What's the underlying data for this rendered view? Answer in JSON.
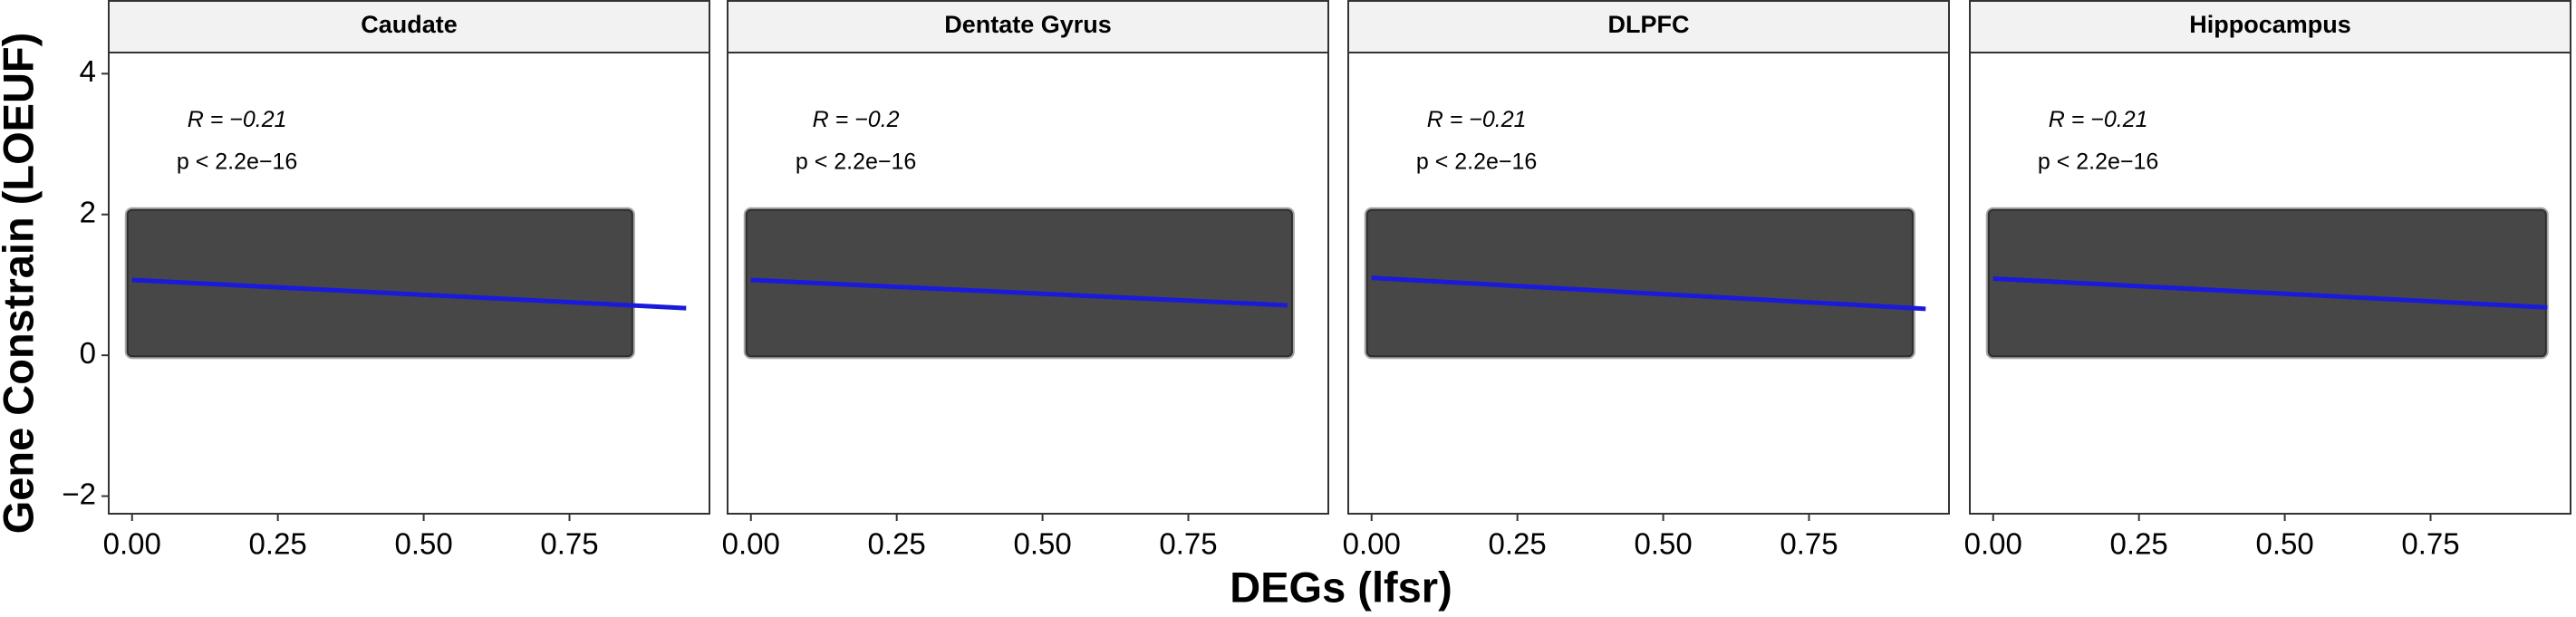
{
  "chart_data": [
    {
      "type": "scatter",
      "title": "Caudate",
      "ylabel": "Gene Constrain (LOEUF)",
      "xlabel": "DEGs (lfsr)",
      "annotations": [
        "R = −0.21",
        "p < 2.2e−16"
      ],
      "xlim": [
        -0.04,
        0.99
      ],
      "ylim": [
        -2.25,
        4.3
      ],
      "xticks": [
        {
          "value": 0,
          "label": "0.00"
        },
        {
          "value": 0.25,
          "label": "0.25"
        },
        {
          "value": 0.5,
          "label": "0.50"
        },
        {
          "value": 0.75,
          "label": "0.75"
        }
      ],
      "yticks": [
        {
          "value": -2,
          "label": "−2"
        },
        0,
        2,
        4
      ],
      "point_cloud": {
        "x": [
          0,
          0.85
        ],
        "y": [
          0.05,
          2
        ]
      },
      "color": "#000000",
      "fit": {
        "x": [
          0,
          0.95
        ],
        "y": [
          1.07,
          0.67
        ],
        "color": "#1a1adb"
      }
    },
    {
      "type": "scatter",
      "title": "Dentate Gyrus",
      "annotations": [
        "R = −0.2",
        "p < 2.2e−16"
      ],
      "xlim": [
        -0.04,
        0.99
      ],
      "ylim": [
        -2.25,
        4.3
      ],
      "xticks": [
        {
          "value": 0,
          "label": "0.00"
        },
        {
          "value": 0.25,
          "label": "0.25"
        },
        {
          "value": 0.5,
          "label": "0.50"
        },
        {
          "value": 0.75,
          "label": "0.75"
        }
      ],
      "point_cloud": {
        "x": [
          0,
          0.92
        ],
        "y": [
          0.05,
          2
        ]
      },
      "color": "#000000",
      "fit": {
        "x": [
          0,
          0.92
        ],
        "y": [
          1.07,
          0.71
        ],
        "color": "#1a1adb"
      }
    },
    {
      "type": "scatter",
      "title": "DLPFC",
      "annotations": [
        "R = −0.21",
        "p < 2.2e−16"
      ],
      "xlim": [
        -0.04,
        0.99
      ],
      "ylim": [
        -2.25,
        4.3
      ],
      "xticks": [
        {
          "value": 0,
          "label": "0.00"
        },
        {
          "value": 0.25,
          "label": "0.25"
        },
        {
          "value": 0.5,
          "label": "0.50"
        },
        {
          "value": 0.75,
          "label": "0.75"
        }
      ],
      "point_cloud": {
        "x": [
          0,
          0.92
        ],
        "y": [
          0.05,
          2
        ]
      },
      "color": "#000000",
      "fit": {
        "x": [
          0,
          0.95
        ],
        "y": [
          1.1,
          0.66
        ],
        "color": "#1a1adb"
      }
    },
    {
      "type": "scatter",
      "title": "Hippocampus",
      "annotations": [
        "R = −0.21",
        "p < 2.2e−16"
      ],
      "xlim": [
        -0.04,
        0.99
      ],
      "ylim": [
        -2.25,
        4.3
      ],
      "xticks": [
        {
          "value": 0,
          "label": "0.00"
        },
        {
          "value": 0.25,
          "label": "0.25"
        },
        {
          "value": 0.5,
          "label": "0.50"
        },
        {
          "value": 0.75,
          "label": "0.75"
        }
      ],
      "point_cloud": {
        "x": [
          0,
          0.94
        ],
        "y": [
          0.05,
          2
        ]
      },
      "color": "#000000",
      "fit": {
        "x": [
          0,
          0.95
        ],
        "y": [
          1.09,
          0.68
        ],
        "color": "#1a1adb"
      }
    }
  ]
}
